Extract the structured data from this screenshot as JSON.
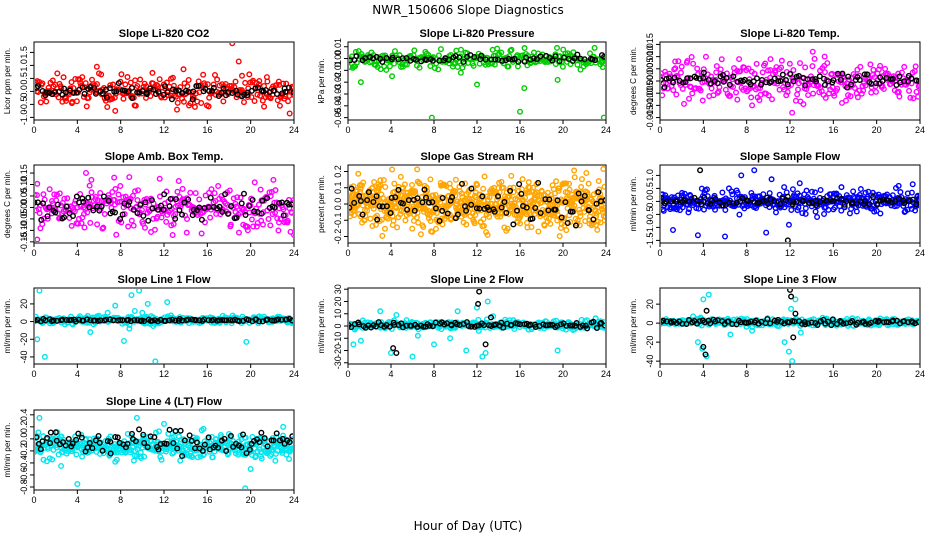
{
  "main_title": "NWR_150606  Slope Diagnostics",
  "x_title": "Hour of Day (UTC)",
  "chart_data": [
    {
      "type": "scatter",
      "title": "Slope Li-820 CO2",
      "ylabel": "Licor ppm per min.",
      "xlim": [
        0,
        24
      ],
      "ylim": [
        -1.1,
        1.9
      ],
      "xticks": [
        "0",
        "4",
        "8",
        "12",
        "16",
        "20",
        "24"
      ],
      "yticks": [
        "-1.0",
        "-0.5",
        "0.0",
        "0.5",
        "1.0",
        "1.5"
      ],
      "series": [
        {
          "color": "#ff0000",
          "center": 0.05,
          "spread": 0.28,
          "n": 260,
          "outliers": [
            [
              3.5,
              -0.45
            ],
            [
              5.8,
              0.95
            ],
            [
              6.2,
              0.65
            ],
            [
              7.5,
              -0.75
            ],
            [
              9.4,
              -0.55
            ],
            [
              13.8,
              0.85
            ],
            [
              13.2,
              -0.7
            ],
            [
              18.3,
              1.85
            ],
            [
              18.9,
              1.15
            ],
            [
              19.2,
              0.6
            ],
            [
              21.5,
              0.55
            ],
            [
              22.7,
              -0.55
            ],
            [
              23.6,
              -0.85
            ]
          ]
        },
        {
          "color": "#000000",
          "center": 0.0,
          "spread": 0.12,
          "n": 90,
          "outliers": []
        }
      ]
    },
    {
      "type": "scatter",
      "title": "Slope Li-820 Pressure",
      "ylabel": "kPa per min.",
      "xlim": [
        0,
        24
      ],
      "ylim": [
        -0.052,
        0.014
      ],
      "xticks": [
        "0",
        "4",
        "8",
        "12",
        "16",
        "20",
        "24"
      ],
      "yticks": [
        "-0.05",
        "-0.04",
        "-0.03",
        "-0.02",
        "-0.01",
        "0.00",
        "0.01"
      ],
      "series": [
        {
          "color": "#00cc00",
          "center": -0.001,
          "spread": 0.004,
          "n": 240,
          "outliers": [
            [
              1.2,
              -0.02
            ],
            [
              4.1,
              -0.015
            ],
            [
              7.8,
              -0.05
            ],
            [
              12.0,
              -0.022
            ],
            [
              16.0,
              -0.045
            ],
            [
              16.4,
              -0.025
            ],
            [
              19.5,
              -0.018
            ],
            [
              23.8,
              -0.05
            ],
            [
              10.5,
              -0.012
            ]
          ]
        },
        {
          "color": "#000000",
          "center": 0.0,
          "spread": 0.0015,
          "n": 70,
          "outliers": []
        }
      ]
    },
    {
      "type": "scatter",
      "title": "Slope Li-820 Temp.",
      "ylabel": "degrees C per min.",
      "xlim": [
        0,
        24
      ],
      "ylim": [
        -0.016,
        0.016
      ],
      "xticks": [
        "0",
        "4",
        "8",
        "12",
        "16",
        "20",
        "24"
      ],
      "yticks": [
        "-0.015",
        "-0.010",
        "-0.005",
        "0.000",
        "0.005",
        "0.010",
        "0.015"
      ],
      "series": [
        {
          "color": "#ff00ff",
          "center": 0.0,
          "spread": 0.004,
          "n": 300,
          "outliers": [
            [
              1.4,
              0.008
            ],
            [
              8.5,
              -0.01
            ],
            [
              10.2,
              0.009
            ],
            [
              12.2,
              -0.013
            ],
            [
              14.1,
              0.012
            ],
            [
              16.8,
              -0.009
            ],
            [
              7.3,
              0.009
            ],
            [
              15.2,
              0.01
            ]
          ]
        },
        {
          "color": "#000000",
          "center": 0.0005,
          "spread": 0.0015,
          "n": 90,
          "outliers": []
        }
      ]
    },
    {
      "type": "scatter",
      "title": "Slope Amb. Box Temp.",
      "ylabel": "degrees C per min.",
      "xlim": [
        0,
        24
      ],
      "ylim": [
        -0.155,
        0.185
      ],
      "xticks": [
        "0",
        "4",
        "8",
        "12",
        "16",
        "20",
        "24"
      ],
      "yticks": [
        "-0.15",
        "-0.10",
        "-0.05",
        "0.00",
        "0.05",
        "0.10",
        "0.15"
      ],
      "series": [
        {
          "color": "#ff00ff",
          "center": 0.0,
          "spread": 0.045,
          "n": 320,
          "outliers": [
            [
              0.3,
              -0.14
            ],
            [
              4.8,
              0.15
            ],
            [
              5.3,
              0.12
            ],
            [
              7.4,
              0.13
            ],
            [
              12.8,
              -0.12
            ],
            [
              14.1,
              -0.11
            ],
            [
              22.1,
              0.12
            ],
            [
              24.0,
              -0.12
            ]
          ]
        },
        {
          "color": "#000000",
          "center": 0.0,
          "spread": 0.03,
          "n": 90,
          "outliers": []
        }
      ]
    },
    {
      "type": "scatter",
      "title": "Slope Gas Stream RH",
      "ylabel": "percent per min.",
      "xlim": [
        0,
        24
      ],
      "ylim": [
        -0.24,
        0.24
      ],
      "xticks": [
        "0",
        "4",
        "8",
        "12",
        "16",
        "20",
        "24"
      ],
      "yticks": [
        "-0.2",
        "-0.1",
        "0.0",
        "0.1",
        "0.2"
      ],
      "series": [
        {
          "color": "#ffa500",
          "center": 0.0,
          "spread": 0.075,
          "n": 700,
          "outliers": []
        },
        {
          "color": "#000000",
          "center": 0.0,
          "spread": 0.06,
          "n": 90,
          "outliers": []
        }
      ]
    },
    {
      "type": "scatter",
      "title": "Slope Sample Flow",
      "ylabel": "ml/min per min.",
      "xlim": [
        0,
        24
      ],
      "ylim": [
        -1.6,
        1.4
      ],
      "xticks": [
        "0",
        "4",
        "8",
        "12",
        "16",
        "20",
        "24"
      ],
      "yticks": [
        "-1.5",
        "-1.0",
        "-0.5",
        "0.0",
        "0.5",
        "1.0"
      ],
      "series": [
        {
          "color": "#0000ff",
          "center": 0.0,
          "spread": 0.22,
          "n": 380,
          "outliers": [
            [
              1.2,
              -1.1
            ],
            [
              3.5,
              -1.3
            ],
            [
              6.0,
              -1.35
            ],
            [
              8.7,
              1.2
            ],
            [
              9.8,
              -1.2
            ],
            [
              10.3,
              0.85
            ],
            [
              11.9,
              -0.9
            ],
            [
              12.9,
              0.7
            ],
            [
              14.5,
              -0.6
            ],
            [
              7.5,
              1.0
            ]
          ]
        },
        {
          "color": "#000000",
          "center": 0.0,
          "spread": 0.08,
          "n": 80,
          "outliers": [
            [
              3.7,
              1.2
            ],
            [
              11.8,
              -1.5
            ]
          ]
        }
      ]
    },
    {
      "type": "scatter",
      "title": "Slope Line 1 Flow",
      "ylabel": "ml/min per min.",
      "xlim": [
        0,
        24
      ],
      "ylim": [
        -48,
        38
      ],
      "xticks": [
        "0",
        "4",
        "8",
        "12",
        "16",
        "20",
        "24"
      ],
      "yticks": [
        "-40",
        "-20",
        "0",
        "20"
      ],
      "series": [
        {
          "color": "#00e5ee",
          "center": 2,
          "spread": 2.2,
          "n": 320,
          "outliers": [
            [
              0.3,
              -20
            ],
            [
              0.5,
              35
            ],
            [
              1.0,
              -40
            ],
            [
              5.2,
              -12
            ],
            [
              6.8,
              10
            ],
            [
              7.5,
              18
            ],
            [
              8.3,
              -22
            ],
            [
              9.0,
              30
            ],
            [
              9.3,
              12
            ],
            [
              9.7,
              35
            ],
            [
              10.0,
              10
            ],
            [
              10.5,
              20
            ],
            [
              11.0,
              -5
            ],
            [
              11.2,
              -45
            ],
            [
              12.3,
              22
            ],
            [
              19.6,
              -23
            ],
            [
              8.8,
              -8
            ]
          ]
        },
        {
          "color": "#000000",
          "center": 1.5,
          "spread": 0.6,
          "n": 95,
          "outliers": []
        }
      ]
    },
    {
      "type": "scatter",
      "title": "Slope Line 2 Flow",
      "ylabel": "ml/min per min.",
      "xlim": [
        0,
        24
      ],
      "ylim": [
        -31,
        31
      ],
      "xticks": [
        "0",
        "4",
        "8",
        "12",
        "16",
        "20",
        "24"
      ],
      "yticks": [
        "-30",
        "-20",
        "-10",
        "0",
        "10",
        "20",
        "30"
      ],
      "series": [
        {
          "color": "#00e5ee",
          "center": 1,
          "spread": 1.8,
          "n": 320,
          "outliers": [
            [
              0.5,
              -15
            ],
            [
              1.2,
              -12
            ],
            [
              3.0,
              12
            ],
            [
              4.0,
              -22
            ],
            [
              4.5,
              9
            ],
            [
              6.5,
              -8
            ],
            [
              8.0,
              -15
            ],
            [
              9.5,
              -10
            ],
            [
              10.2,
              12
            ],
            [
              11.0,
              -20
            ],
            [
              12.0,
              15
            ],
            [
              12.5,
              -25
            ],
            [
              12.8,
              -22
            ],
            [
              13.0,
              20
            ],
            [
              13.5,
              8
            ],
            [
              19.5,
              -20
            ],
            [
              6.0,
              -25
            ]
          ]
        },
        {
          "color": "#000000",
          "center": 1,
          "spread": 1.2,
          "n": 95,
          "outliers": [
            [
              4.2,
              -18
            ],
            [
              4.5,
              -22
            ],
            [
              12.1,
              18
            ],
            [
              12.2,
              28
            ],
            [
              12.8,
              -15
            ],
            [
              13.3,
              7
            ]
          ]
        }
      ]
    },
    {
      "type": "scatter",
      "title": "Slope Line 3 Flow",
      "ylabel": "ml/min per min.",
      "xlim": [
        0,
        24
      ],
      "ylim": [
        -43,
        37
      ],
      "xticks": [
        "0",
        "4",
        "8",
        "12",
        "16",
        "20",
        "24"
      ],
      "yticks": [
        "-40",
        "-20",
        "0",
        "20"
      ],
      "series": [
        {
          "color": "#00e5ee",
          "center": 1,
          "spread": 2.0,
          "n": 320,
          "outliers": [
            [
              3.5,
              -20
            ],
            [
              3.9,
              -27
            ],
            [
              4.0,
              25
            ],
            [
              4.3,
              -35
            ],
            [
              4.5,
              30
            ],
            [
              6.5,
              -12
            ],
            [
              8.5,
              -8
            ],
            [
              11.5,
              -20
            ],
            [
              11.9,
              -30
            ],
            [
              12.2,
              -40
            ],
            [
              12.5,
              25
            ],
            [
              13.0,
              -10
            ],
            [
              12.1,
              15
            ]
          ]
        },
        {
          "color": "#000000",
          "center": 1,
          "spread": 1.5,
          "n": 95,
          "outliers": [
            [
              4.0,
              -25
            ],
            [
              4.2,
              -33
            ],
            [
              4.3,
              13
            ],
            [
              12.0,
              35
            ],
            [
              12.1,
              28
            ],
            [
              12.3,
              -15
            ],
            [
              12.5,
              10
            ]
          ]
        }
      ]
    },
    {
      "type": "scatter",
      "title": "Slope Line 4 (LT) Flow",
      "ylabel": "ml/min per min.",
      "xlim": [
        0,
        24
      ],
      "ylim": [
        -0.85,
        0.48
      ],
      "xticks": [
        "0",
        "4",
        "8",
        "12",
        "16",
        "20",
        "24"
      ],
      "yticks": [
        "-0.8",
        "-0.6",
        "-0.4",
        "-0.2",
        "0.0",
        "0.2",
        "0.4"
      ],
      "series": [
        {
          "color": "#00e5ee",
          "center": -0.12,
          "spread": 0.1,
          "n": 450,
          "outliers": [
            [
              0.5,
              0.35
            ],
            [
              2.5,
              -0.45
            ],
            [
              4.0,
              -0.75
            ],
            [
              7.5,
              -0.38
            ],
            [
              9.5,
              0.35
            ],
            [
              12.0,
              0.25
            ],
            [
              19.5,
              -0.82
            ],
            [
              20.0,
              -0.5
            ],
            [
              23.0,
              0.2
            ]
          ]
        },
        {
          "color": "#000000",
          "center": -0.05,
          "spread": 0.1,
          "n": 95,
          "outliers": []
        }
      ]
    }
  ]
}
